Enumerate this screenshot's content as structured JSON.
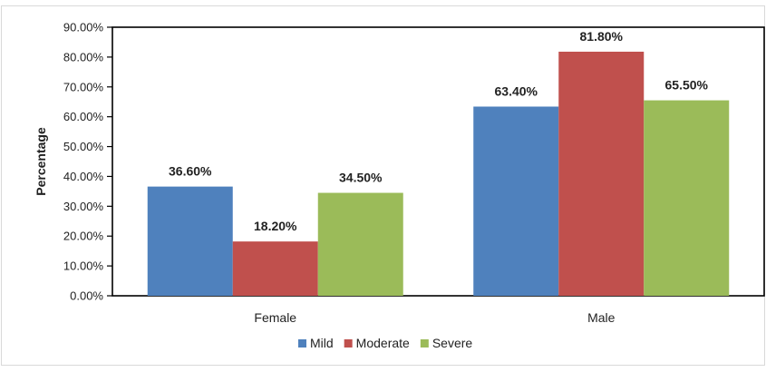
{
  "chart_data": {
    "type": "bar",
    "title": "",
    "xlabel": "",
    "ylabel": "Percentage",
    "ylim": [
      0,
      90
    ],
    "y_tick_step": 10,
    "y_tick_format": "percent-2dp",
    "categories": [
      "Female",
      "Male"
    ],
    "series": [
      {
        "name": "Mild",
        "color": "#4f81bd",
        "values": [
          36.6,
          63.4
        ],
        "labels": [
          "36.60%",
          "63.40%"
        ]
      },
      {
        "name": "Moderate",
        "color": "#c0504d",
        "values": [
          18.2,
          81.8
        ],
        "labels": [
          "18.20%",
          "81.80%"
        ]
      },
      {
        "name": "Severe",
        "color": "#9bbb59",
        "values": [
          34.5,
          65.5
        ],
        "labels": [
          "34.50%",
          "65.50%"
        ]
      }
    ],
    "y_tick_labels": [
      "0.00%",
      "10.00%",
      "20.00%",
      "30.00%",
      "40.00%",
      "50.00%",
      "60.00%",
      "70.00%",
      "80.00%",
      "90.00%"
    ],
    "grid": false,
    "legend_position": "bottom"
  }
}
